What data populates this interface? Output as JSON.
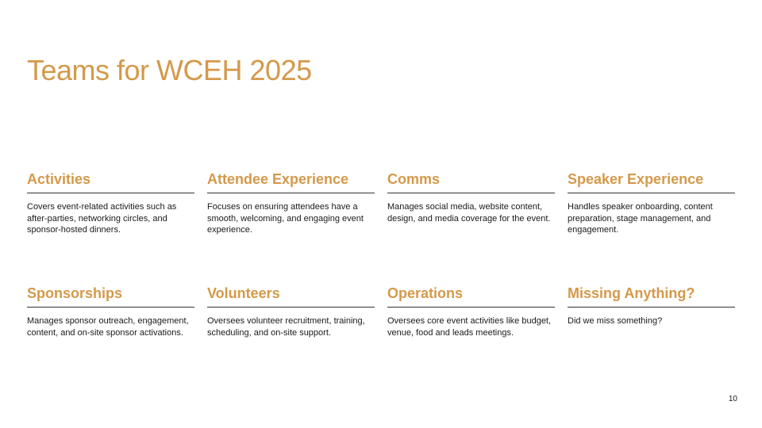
{
  "slide": {
    "title": "Teams for WCEH 2025",
    "page_number": "10"
  },
  "teams": [
    {
      "name": "Activities",
      "description": "Covers event-related activities such as after-parties, networking circles, and sponsor-hosted dinners."
    },
    {
      "name": "Attendee Experience",
      "description": "Focuses on ensuring attendees have a smooth, welcoming, and engaging event experience."
    },
    {
      "name": "Comms",
      "description": "Manages social media, website content, design, and media coverage for the event."
    },
    {
      "name": "Speaker Experience",
      "description": "Handles speaker onboarding, content preparation, stage management, and engagement."
    },
    {
      "name": "Sponsorships",
      "description": "Manages sponsor outreach, engagement, content, and on-site sponsor activations."
    },
    {
      "name": "Volunteers",
      "description": "Oversees volunteer recruitment, training, scheduling, and on-site support."
    },
    {
      "name": "Operations",
      "description": "Oversees core event activities like budget, venue, food and leads meetings."
    },
    {
      "name": "Missing Anything?",
      "description": "Did we miss something?"
    }
  ],
  "colors": {
    "accent": "#d4994a",
    "text": "#1a1a1a",
    "rule": "#333333",
    "background": "#ffffff"
  }
}
